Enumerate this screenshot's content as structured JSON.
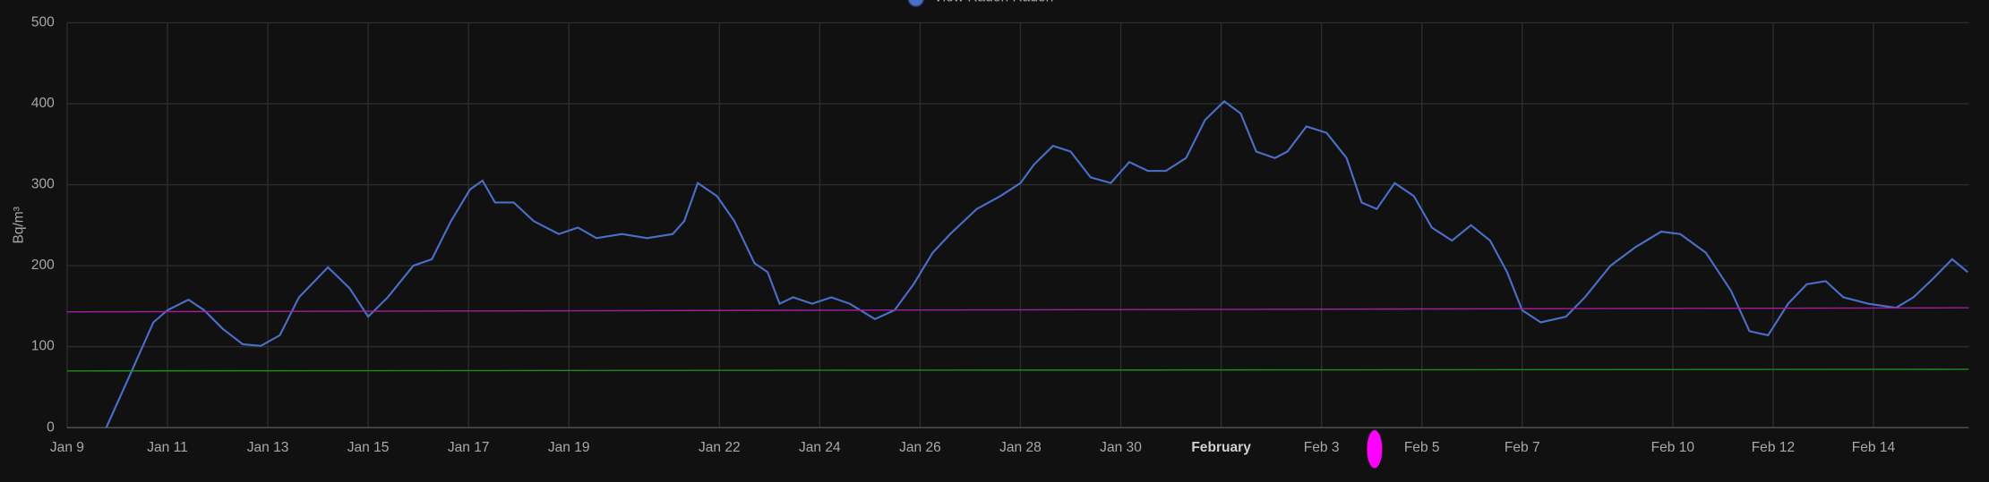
{
  "chart_data": {
    "type": "line",
    "y_label": "Bq/m³",
    "xlim": [
      9,
      46.9
    ],
    "ylim": [
      0,
      500
    ],
    "yticks": [
      0,
      100,
      200,
      300,
      400,
      500
    ],
    "xticks": [
      {
        "value": 9,
        "label": "Jan 9"
      },
      {
        "value": 11,
        "label": "Jan 11"
      },
      {
        "value": 13,
        "label": "Jan 13"
      },
      {
        "value": 15,
        "label": "Jan 15"
      },
      {
        "value": 17,
        "label": "Jan 17"
      },
      {
        "value": 19,
        "label": "Jan 19"
      },
      {
        "value": 22,
        "label": "Jan 22"
      },
      {
        "value": 24,
        "label": "Jan 24"
      },
      {
        "value": 26,
        "label": "Jan 26"
      },
      {
        "value": 28,
        "label": "Jan 28"
      },
      {
        "value": 30,
        "label": "Jan 30"
      },
      {
        "value": 32,
        "label": "February",
        "bold": true
      },
      {
        "value": 34,
        "label": "Feb 3"
      },
      {
        "value": 36,
        "label": "Feb 5"
      },
      {
        "value": 38,
        "label": "Feb 7"
      },
      {
        "value": 41,
        "label": "Feb 10"
      },
      {
        "value": 43,
        "label": "Feb 12"
      },
      {
        "value": 45,
        "label": "Feb 14"
      }
    ],
    "grid": true,
    "legend": "top",
    "series": [
      {
        "name": "View Radon Radon",
        "color": "#4a6fc9",
        "x": [
          9.78,
          10.21,
          10.72,
          11.0,
          11.42,
          11.73,
          12.1,
          12.5,
          12.86,
          13.24,
          13.62,
          14.2,
          14.63,
          15.0,
          15.39,
          15.9,
          16.27,
          16.65,
          17.03,
          17.28,
          17.53,
          17.9,
          18.3,
          18.8,
          19.18,
          19.55,
          20.06,
          20.56,
          21.07,
          21.3,
          21.57,
          21.95,
          22.3,
          22.7,
          22.96,
          23.2,
          23.47,
          23.85,
          24.23,
          24.6,
          25.1,
          25.49,
          25.87,
          26.25,
          26.6,
          27.13,
          27.6,
          28.0,
          28.27,
          28.65,
          29.0,
          29.4,
          29.8,
          30.17,
          30.54,
          30.9,
          31.3,
          31.68,
          32.06,
          32.39,
          32.7,
          33.07,
          33.32,
          33.7,
          34.1,
          34.5,
          34.8,
          35.1,
          35.46,
          35.84,
          36.2,
          36.6,
          36.98,
          37.36,
          37.7,
          38.0,
          38.37,
          38.87,
          39.25,
          39.76,
          40.26,
          40.77,
          41.15,
          41.66,
          42.16,
          42.53,
          42.9,
          43.3,
          43.67,
          44.05,
          44.4,
          44.9,
          45.45,
          45.8,
          46.19,
          46.57,
          46.88
        ],
        "values": [
          0,
          59,
          130,
          145,
          158,
          145,
          122,
          103,
          101,
          114,
          161,
          198,
          172,
          137,
          161,
          200,
          208,
          255,
          294,
          305,
          278,
          278,
          255,
          239,
          247,
          234,
          239,
          234,
          239,
          255,
          302,
          286,
          255,
          203,
          192,
          153,
          161,
          153,
          161,
          153,
          134,
          145,
          177,
          216,
          239,
          270,
          286,
          302,
          325,
          348,
          341,
          309,
          302,
          328,
          317,
          317,
          333,
          380,
          403,
          388,
          341,
          333,
          341,
          372,
          364,
          333,
          278,
          270,
          302,
          286,
          247,
          231,
          250,
          231,
          192,
          145,
          130,
          137,
          161,
          200,
          223,
          242,
          239,
          216,
          169,
          119,
          114,
          153,
          177,
          181,
          161,
          153,
          148,
          161,
          184,
          208,
          192
        ]
      },
      {
        "color": "#a020a0",
        "x": [
          9,
          46.9
        ],
        "values": [
          143,
          148
        ]
      },
      {
        "color": "#1f8a1f",
        "x": [
          9,
          46.9
        ],
        "values": [
          70,
          72
        ]
      }
    ]
  }
}
